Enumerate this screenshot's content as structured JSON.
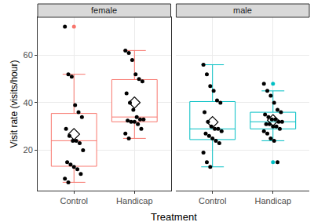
{
  "chart_data": {
    "type": "box",
    "x_label": "Treatment",
    "y_label": "Visit rate (visits/hour)",
    "ylim": [
      3,
      76
    ],
    "yticks": [
      20,
      40,
      60
    ],
    "grid": true,
    "marker": "diamond",
    "panels": [
      {
        "title": "female",
        "color": "#f8766d",
        "categories": [
          "Control",
          "Handicap"
        ],
        "values": [
          [
            72,
            52,
            51,
            39,
            36,
            34,
            29,
            26,
            24,
            24,
            23,
            20,
            15,
            14,
            13,
            12,
            10,
            8,
            6.5
          ],
          [
            62,
            61,
            58,
            52,
            50,
            49,
            44,
            40,
            37,
            34,
            33,
            33,
            32.5,
            32,
            32,
            31,
            29,
            27,
            25
          ]
        ]
      },
      {
        "title": "male",
        "color": "#00bfc4",
        "categories": [
          "Control",
          "Handicap"
        ],
        "values": [
          [
            56,
            52,
            47,
            45,
            41,
            40,
            36,
            32,
            30,
            29,
            29,
            28,
            27,
            26,
            25,
            24,
            23,
            19,
            15,
            13
          ],
          [
            48,
            45,
            43,
            40,
            37,
            36,
            35,
            34,
            33,
            33,
            32,
            32,
            31,
            31,
            30,
            30,
            29,
            28,
            27,
            25,
            24,
            15
          ]
        ]
      }
    ]
  }
}
